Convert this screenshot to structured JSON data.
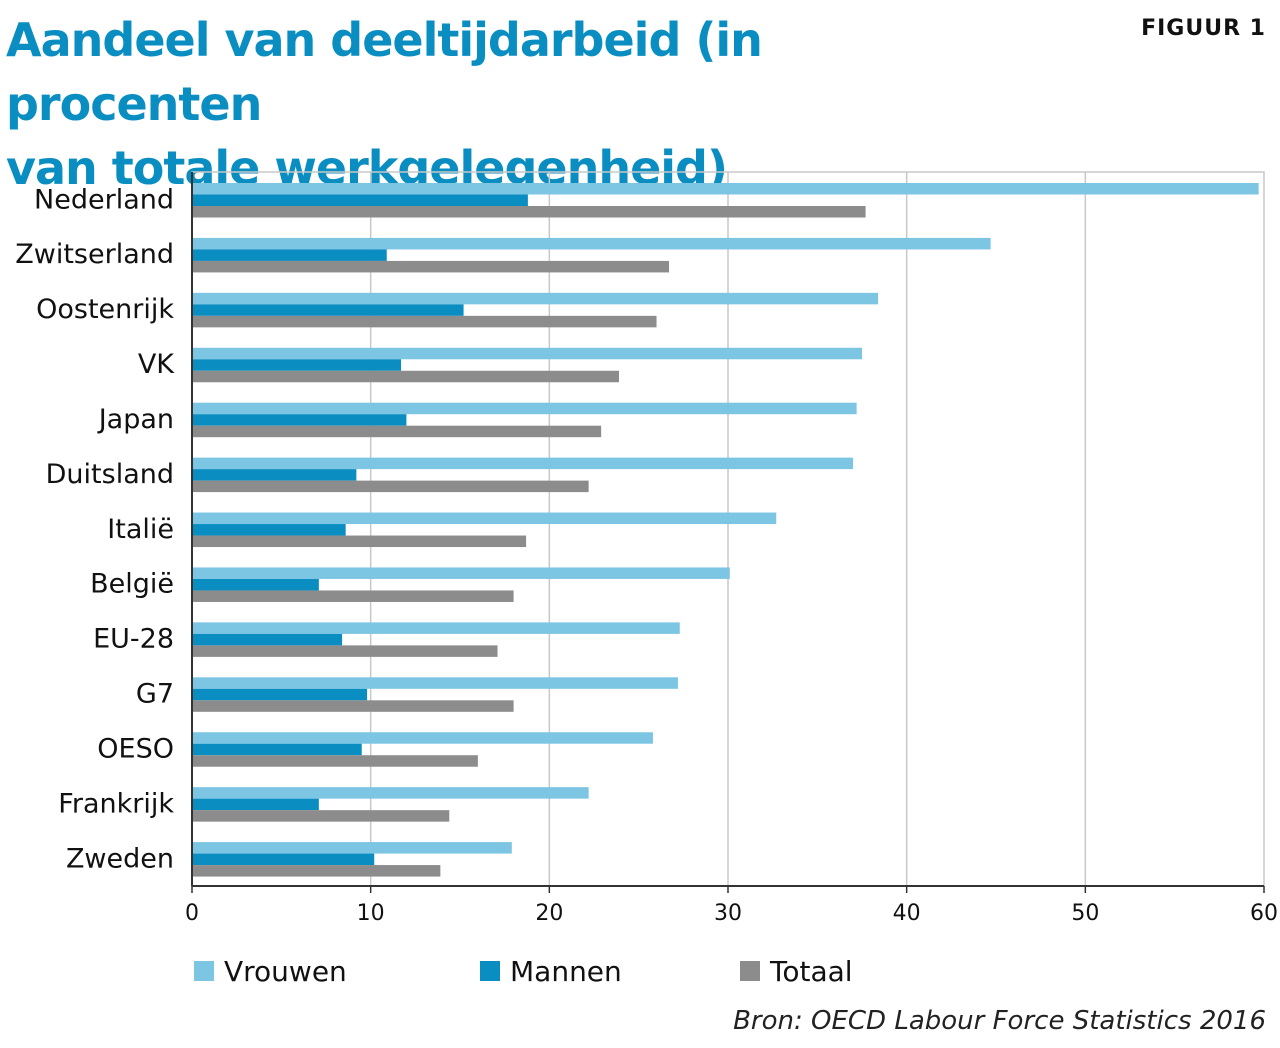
{
  "header": {
    "title_line1": "Aandeel van deeltijdarbeid (in procenten",
    "title_line2": "van totale werkgelegenheid)",
    "figure_label": "FIGUUR 1"
  },
  "source": "Bron: OECD Labour Force Statistics 2016",
  "colors": {
    "Vrouwen": "#7cc6e4",
    "Mannen": "#0a8ec2",
    "Totaal": "#8c8c8c",
    "grid": "#c8c8c8",
    "axis": "#333333"
  },
  "chart_data": {
    "type": "bar",
    "orientation": "horizontal",
    "categories": [
      "Nederland",
      "Zwitserland",
      "Oostenrijk",
      "VK",
      "Japan",
      "Duitsland",
      "Italië",
      "België",
      "EU-28",
      "G7",
      "OESO",
      "Frankrijk",
      "Zweden"
    ],
    "series": [
      {
        "name": "Vrouwen",
        "values": [
          59.7,
          44.7,
          38.4,
          37.5,
          37.2,
          37.0,
          32.7,
          30.1,
          27.3,
          27.2,
          25.8,
          22.2,
          17.9
        ]
      },
      {
        "name": "Mannen",
        "values": [
          18.8,
          10.9,
          15.2,
          11.7,
          12.0,
          9.2,
          8.6,
          7.1,
          8.4,
          9.8,
          9.5,
          7.1,
          10.2
        ]
      },
      {
        "name": "Totaal",
        "values": [
          37.7,
          26.7,
          26.0,
          23.9,
          22.9,
          22.2,
          18.7,
          18.0,
          17.1,
          18.0,
          16.0,
          14.4,
          13.9
        ]
      }
    ],
    "xlim": [
      0,
      60
    ],
    "xticks": [
      0,
      10,
      20,
      30,
      40,
      50,
      60
    ],
    "grid": true,
    "legend_position": "bottom"
  }
}
